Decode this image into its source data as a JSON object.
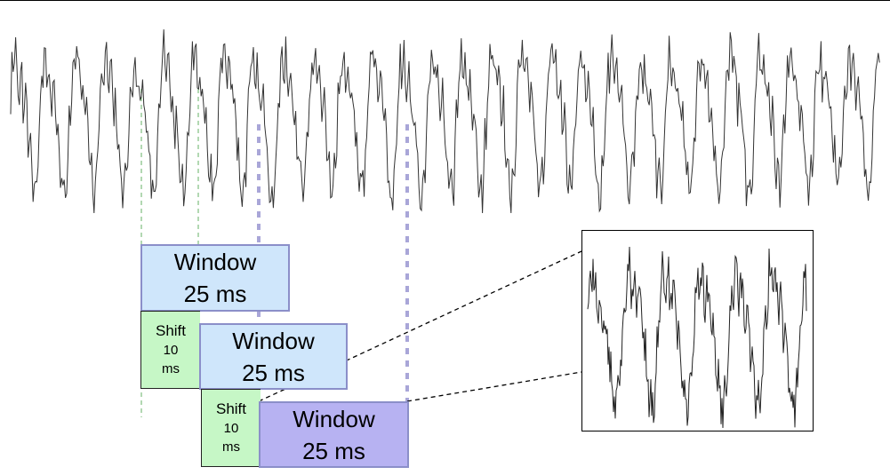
{
  "diagram": {
    "windows": [
      {
        "line1": "Window",
        "line2": "25 ms"
      },
      {
        "line1": "Window",
        "line2": "25 ms"
      },
      {
        "line1": "Window",
        "line2": "25 ms"
      }
    ],
    "shifts": [
      {
        "line1": "Shift",
        "line2": "10",
        "line3": "ms"
      },
      {
        "line1": "Shift",
        "line2": "10",
        "line3": "ms"
      }
    ],
    "colors": {
      "window_light": "#cfe6fb",
      "window_highlight": "#b7b2f2",
      "shift": "#c6f7c6",
      "frame_marker_green": "#7fbf7f",
      "frame_marker_purple": "#a9a6d8",
      "waveform": "#333333"
    }
  }
}
